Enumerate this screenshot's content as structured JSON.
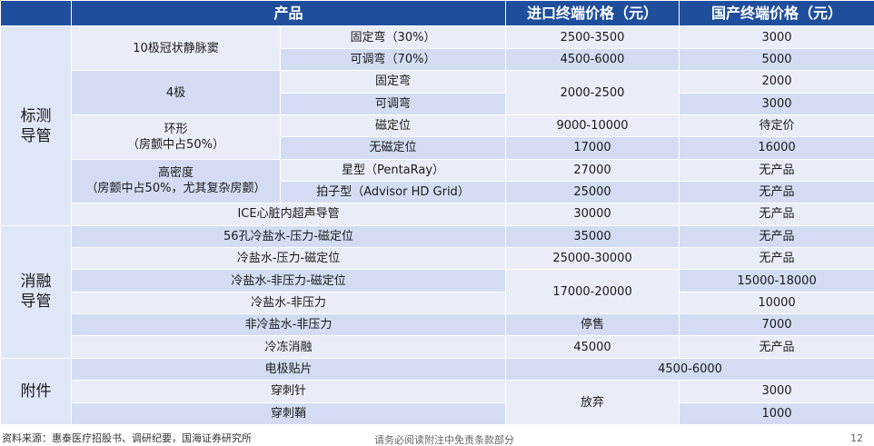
{
  "header": {
    "product": "产品",
    "import_price": "进口终端价格（元）",
    "domestic_price": "国产终端价格（元）"
  },
  "categories": {
    "mapping": "标测\n导管",
    "ablation": "消融\n导管",
    "accessories": "附件"
  },
  "mapping": {
    "cs10": {
      "name": "10极冠状静脉窦"
    },
    "cs10_fixed": {
      "type": "固定弯（30%）",
      "import": "2500-3500",
      "domestic": "3000"
    },
    "cs10_adj": {
      "type": "可调弯（70%）",
      "import": "4500-6000",
      "domestic": "5000"
    },
    "p4": {
      "name": "4极",
      "import": "2000-2500"
    },
    "p4_fixed": {
      "type": "固定弯",
      "domestic": "2000"
    },
    "p4_adj": {
      "type": "可调弯",
      "domestic": "3000"
    },
    "ring": {
      "name": "环形\n（房颤中占50%）"
    },
    "ring_mag": {
      "type": "磁定位",
      "import": "9000-10000",
      "domestic": "待定价"
    },
    "ring_nomag": {
      "type": "无磁定位",
      "import": "17000",
      "domestic": "16000"
    },
    "hd": {
      "name": "高密度\n（房颤中占50%，尤其复杂房颤）"
    },
    "hd_star": {
      "type": "星型（PentaRay）",
      "import": "27000",
      "domestic": "无产品"
    },
    "hd_grid": {
      "type": "拍子型（Advisor HD Grid）",
      "import": "25000",
      "domestic": "无产品"
    },
    "ice": {
      "name": "ICE心脏内超声导管",
      "import": "30000",
      "domestic": "无产品"
    }
  },
  "ablation": {
    "r1": {
      "name": "56孔冷盐水-压力-磁定位",
      "import": "35000",
      "domestic": "无产品"
    },
    "r2": {
      "name": "冷盐水-压力-磁定位",
      "import": "25000-30000",
      "domestic": "无产品"
    },
    "r34_import": "17000-20000",
    "r3": {
      "name": "冷盐水-非压力-磁定位",
      "domestic": "15000-18000"
    },
    "r4": {
      "name": "冷盐水-非压力",
      "domestic": "10000"
    },
    "r5": {
      "name": "非冷盐水-非压力",
      "import": "停售",
      "domestic": "7000"
    },
    "r6": {
      "name": "冷冻消融",
      "import": "45000",
      "domestic": "无产品"
    }
  },
  "accessories": {
    "electrode": {
      "name": "电极贴片",
      "price": "4500-6000"
    },
    "needle_import": "放弃",
    "needle": {
      "name": "穿刺针",
      "domestic": "3000"
    },
    "sheath": {
      "name": "穿刺鞘",
      "domestic": "1000"
    }
  },
  "footer": {
    "source": "资料来源：惠泰医疗招股书、调研纪要，国海证券研究所",
    "disclaimer": "请务必阅读附注中免责条款部分",
    "page": "12"
  }
}
